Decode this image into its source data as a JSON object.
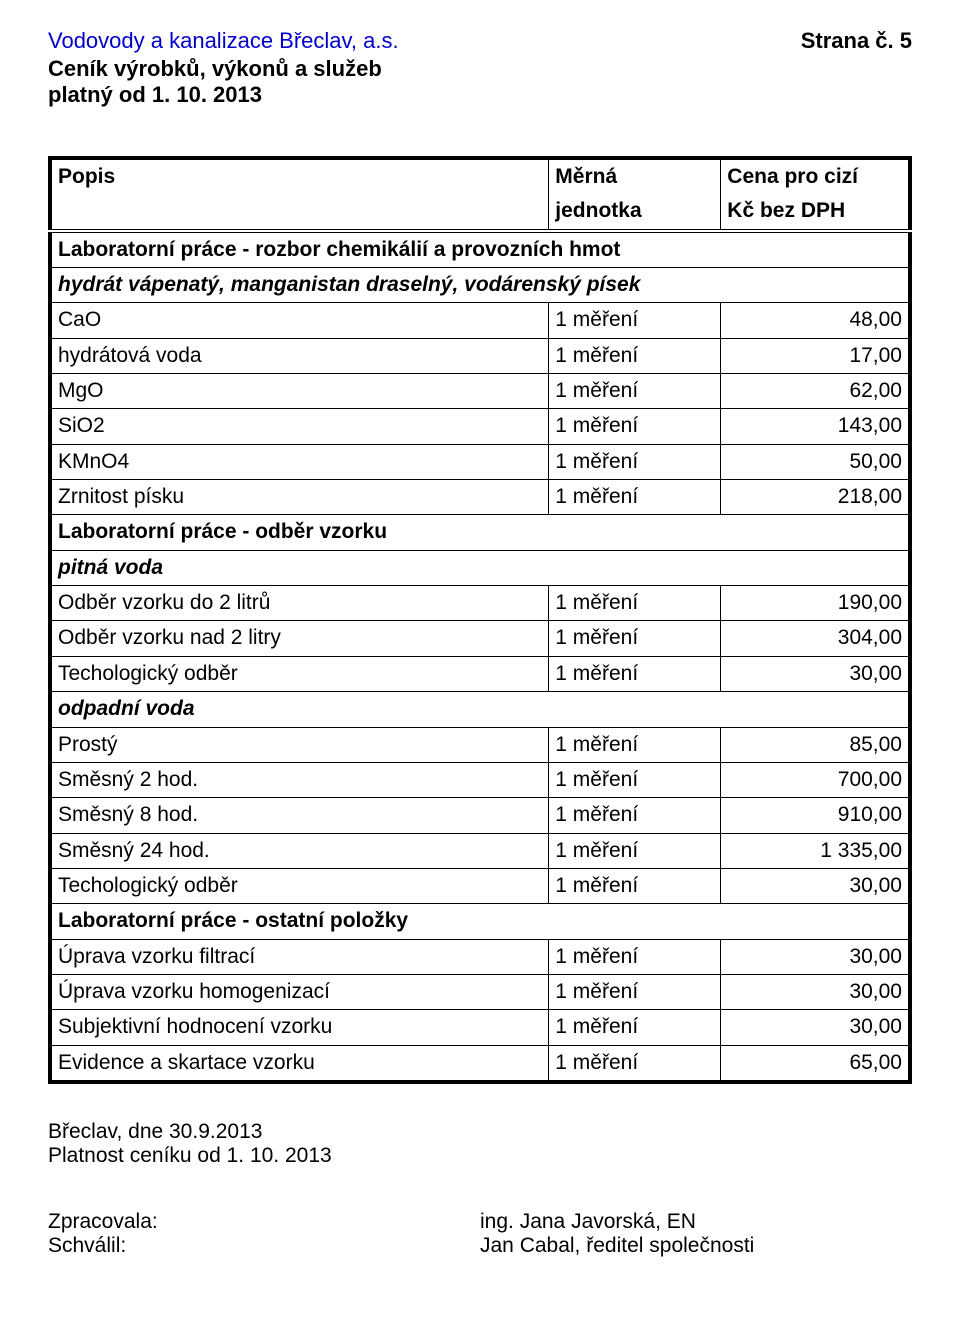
{
  "header": {
    "company": "Vodovody a kanalizace Břeclav, a.s.",
    "page_label": "Strana č. 5",
    "subtitle": "Ceník výrobků, výkonů a služeb",
    "valid_from": "platný od 1. 10. 2013"
  },
  "table": {
    "head": {
      "c1_top": "Popis",
      "c2_top": "Měrná",
      "c3_top": "Cena pro cizí",
      "c1_bot": "",
      "c2_bot": "jednotka",
      "c3_bot": "Kč bez DPH"
    },
    "rows": [
      {
        "type": "section",
        "c1": "Laboratorní práce - rozbor chemikálií a provozních hmot"
      },
      {
        "type": "subsection",
        "c1": "hydrát vápenatý, manganistan draselný, vodárenský písek"
      },
      {
        "type": "data",
        "c1": "CaO",
        "c2": "1 měření",
        "c3": "48,00"
      },
      {
        "type": "data",
        "c1": "hydrátová voda",
        "c2": "1 měření",
        "c3": "17,00"
      },
      {
        "type": "data",
        "c1": "MgO",
        "c2": "1 měření",
        "c3": "62,00"
      },
      {
        "type": "data",
        "c1": "SiO2",
        "c2": "1 měření",
        "c3": "143,00"
      },
      {
        "type": "data",
        "c1": "KMnO4",
        "c2": "1 měření",
        "c3": "50,00"
      },
      {
        "type": "data",
        "c1": "Zrnitost písku",
        "c2": "1 měření",
        "c3": "218,00"
      },
      {
        "type": "section",
        "c1": "Laboratorní práce - odběr vzorku"
      },
      {
        "type": "subsection",
        "c1": "pitná voda"
      },
      {
        "type": "data",
        "c1": "Odběr vzorku do 2 litrů",
        "c2": "1 měření",
        "c3": "190,00"
      },
      {
        "type": "data",
        "c1": "Odběr vzorku nad 2 litry",
        "c2": "1 měření",
        "c3": "304,00"
      },
      {
        "type": "data",
        "c1": "Techologický odběr",
        "c2": "1 měření",
        "c3": "30,00"
      },
      {
        "type": "subsection",
        "c1": "odpadní voda"
      },
      {
        "type": "data",
        "c1": "Prostý",
        "c2": "1 měření",
        "c3": "85,00"
      },
      {
        "type": "data",
        "c1": "Směsný 2 hod.",
        "c2": "1 měření",
        "c3": "700,00"
      },
      {
        "type": "data",
        "c1": "Směsný 8 hod.",
        "c2": "1 měření",
        "c3": "910,00"
      },
      {
        "type": "data",
        "c1": "Směsný 24 hod.",
        "c2": "1 měření",
        "c3": "1 335,00"
      },
      {
        "type": "data",
        "c1": "Techologický odběr",
        "c2": "1 měření",
        "c3": "30,00"
      },
      {
        "type": "section",
        "c1": "Laboratorní práce - ostatní položky"
      },
      {
        "type": "data",
        "c1": "Úprava vzorku filtrací",
        "c2": "1 měření",
        "c3": "30,00"
      },
      {
        "type": "data",
        "c1": "Úprava vzorku homogenizací",
        "c2": "1 měření",
        "c3": "30,00"
      },
      {
        "type": "data",
        "c1": "Subjektivní hodnocení vzorku",
        "c2": "1 měření",
        "c3": "30,00"
      },
      {
        "type": "data",
        "c1": "Evidence a skartace vzorku",
        "c2": "1 měření",
        "c3": "65,00"
      }
    ]
  },
  "footer": {
    "place_date": "Břeclav, dne 30.9.2013",
    "validity": "Platnost ceníku od 1. 10. 2013",
    "prepared_label": "Zpracovala:",
    "prepared_name": "ing. Jana Javorská, EN",
    "approved_label": "Schválil:",
    "approved_name": "Jan Cabal, ředitel společnosti"
  }
}
